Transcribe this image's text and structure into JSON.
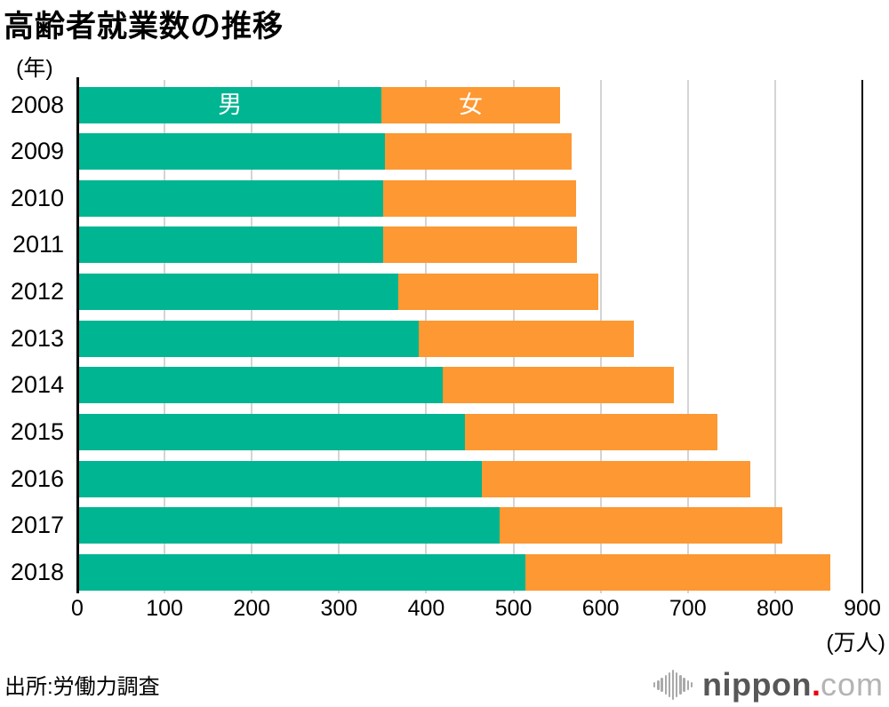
{
  "page": {
    "title": "高齢者就業数の推移",
    "y_axis_unit": "(年)",
    "x_axis_unit": "(万人)",
    "source": "出所:労働力調査",
    "logo": {
      "name": "nippon",
      "dot": ".",
      "suffix": "com",
      "icon": "soundwave-bars-icon"
    }
  },
  "chart_data": {
    "type": "bar",
    "orientation": "horizontal",
    "stacked": true,
    "title": "高齢者就業数の推移",
    "xlabel": "(万人)",
    "ylabel": "(年)",
    "xlim": [
      0,
      900
    ],
    "x_ticks": [
      0,
      100,
      200,
      300,
      400,
      500,
      600,
      700,
      800,
      900
    ],
    "grid": true,
    "legend_position": "inside-first-bar",
    "categories": [
      "2008",
      "2009",
      "2010",
      "2011",
      "2012",
      "2013",
      "2014",
      "2015",
      "2016",
      "2017",
      "2018"
    ],
    "series": [
      {
        "name": "男",
        "color": "#00b592",
        "values": [
          347,
          351,
          349,
          349,
          366,
          390,
          417,
          443,
          462,
          483,
          512
        ]
      },
      {
        "name": "女",
        "color": "#fd9832",
        "values": [
          205,
          214,
          221,
          222,
          230,
          247,
          265,
          289,
          308,
          324,
          350
        ]
      }
    ],
    "totals": [
      552,
      565,
      570,
      571,
      596,
      637,
      682,
      732,
      770,
      807,
      862
    ]
  },
  "style_colors": {
    "male_bar": "#00b592",
    "female_bar": "#fd9832",
    "gridline": "#d4d4d4",
    "axis_line": "#000000",
    "bar_label_text": "#ffffff"
  }
}
